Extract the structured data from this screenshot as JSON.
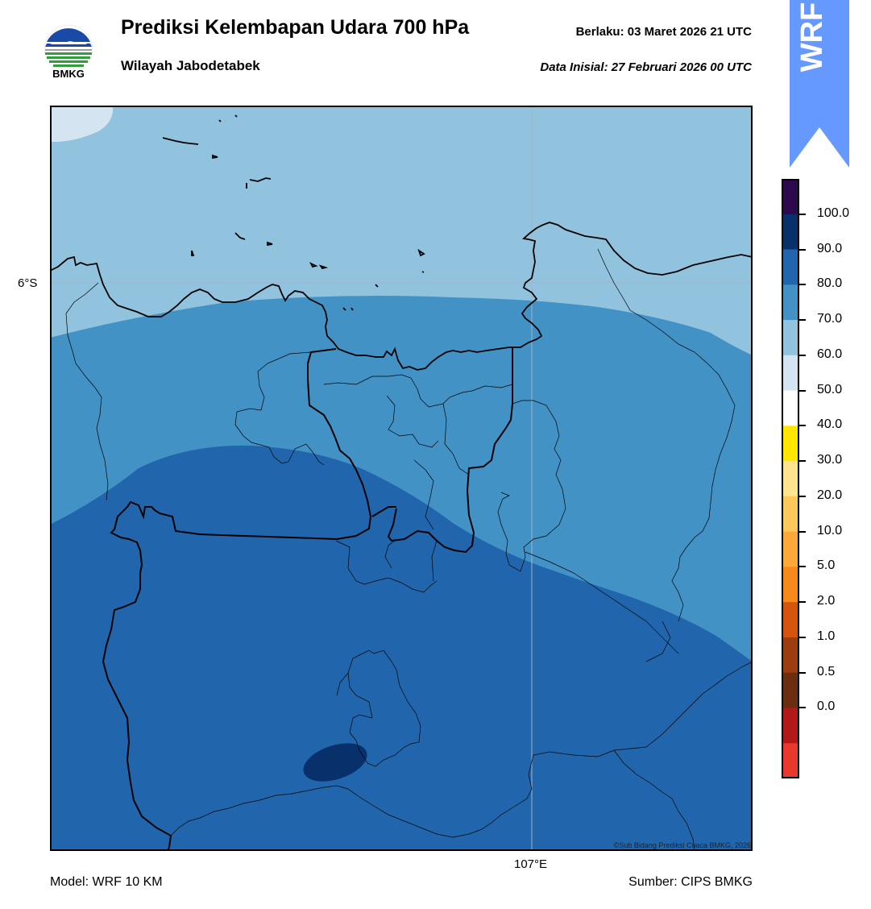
{
  "header": {
    "logo_text": "BMKG",
    "title": "Prediksi Kelembapan Udara 700 hPa",
    "subtitle": "Wilayah Jabodetabek",
    "valid": "Berlaku:  03 Maret 2026 21 UTC",
    "initial": "Data Inisial:  27 Februari 2026 00 UTC"
  },
  "badge": {
    "text": "WRF",
    "color": "#6699ff"
  },
  "map": {
    "lat_label": "6°S",
    "lon_label": "107°E",
    "copyright": "©Sub Bidang Prediksi Cuaca BMKG, 2026",
    "fill_levels": {
      "50-60": "#d4e5f1",
      "60-70": "#91c3de",
      "70-80": "#4292c6",
      "80-90": "#2166ac",
      "90-100": "#08306b"
    }
  },
  "colorbar": {
    "labels": [
      "100.0",
      "90.0",
      "80.0",
      "70.0",
      "60.0",
      "50.0",
      "40.0",
      "30.0",
      "20.0",
      "10.0",
      "5.0",
      "2.0",
      "1.0",
      "0.5",
      "0.0"
    ],
    "colors": [
      "#2d0a4e",
      "#08306b",
      "#2166ac",
      "#4292c6",
      "#91c3de",
      "#d4e5f1",
      "#ffffff",
      "#ffe600",
      "#ffe48f",
      "#ffc85a",
      "#fda93a",
      "#f88a1c",
      "#d5540e",
      "#9c3d10",
      "#6b2f0f",
      "#b21818",
      "#e8392c"
    ]
  },
  "footer": {
    "model": "Model: WRF 10 KM",
    "source": "Sumber: CIPS BMKG"
  }
}
